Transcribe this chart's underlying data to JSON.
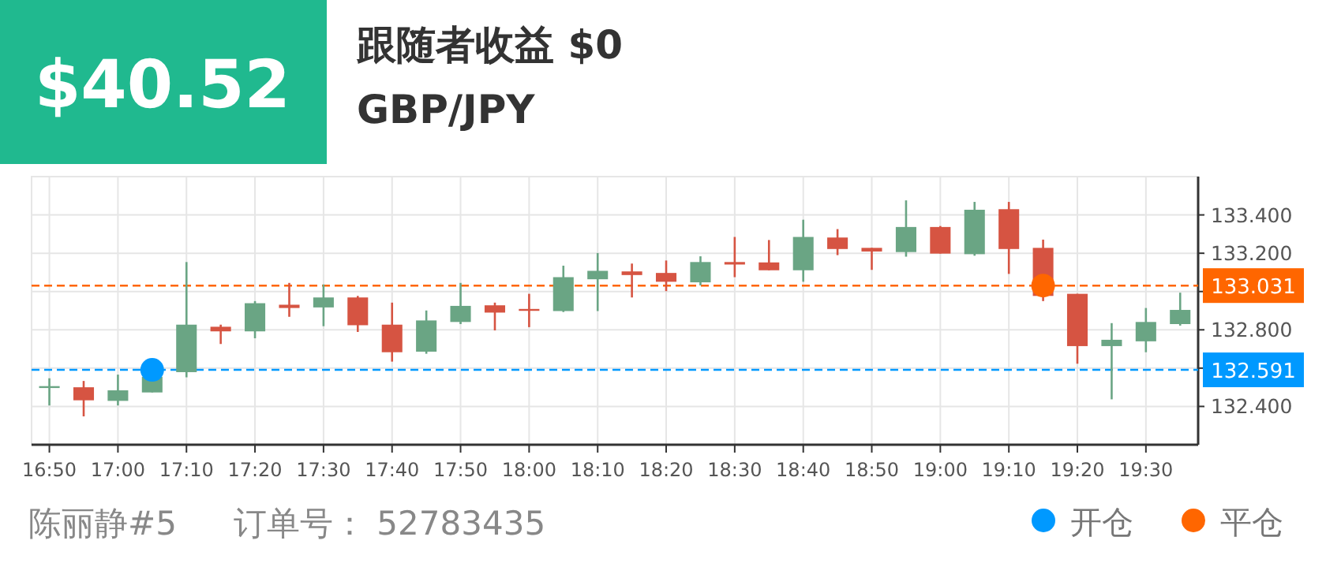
{
  "chart_data": {
    "type": "candlestick",
    "title": "GBP/JPY",
    "subtitle": "跟随者收益 $0",
    "annotations": [
      "$40.52",
      "陈丽静#5",
      "订单号： 52783435"
    ],
    "x": [
      16.8333,
      16.9167,
      17.0,
      17.0833,
      17.1667,
      17.25,
      17.3333,
      17.4167,
      17.5,
      17.5833,
      17.6667,
      17.75,
      17.8333,
      17.9167,
      18.0,
      18.0833,
      18.1667,
      18.25,
      18.3333,
      18.4167,
      18.5,
      18.5833,
      18.6667,
      18.75,
      18.8333,
      18.9167,
      19.0,
      19.0833,
      19.1667,
      19.25,
      19.3333,
      19.4167,
      19.5,
      19.5833
    ],
    "ohlc": [
      [
        132.503,
        132.547,
        132.405,
        132.506
      ],
      [
        132.5,
        132.533,
        132.348,
        132.432
      ],
      [
        132.429,
        132.566,
        132.405,
        132.484
      ],
      [
        132.473,
        132.555,
        132.473,
        132.555
      ],
      [
        132.579,
        133.154,
        132.552,
        132.827
      ],
      [
        132.816,
        132.827,
        132.726,
        132.792
      ],
      [
        132.792,
        132.95,
        132.756,
        132.939
      ],
      [
        132.931,
        133.045,
        132.868,
        132.914
      ],
      [
        132.917,
        133.037,
        132.819,
        132.969
      ],
      [
        132.969,
        132.977,
        132.789,
        132.824
      ],
      [
        132.827,
        132.942,
        132.634,
        132.683
      ],
      [
        132.686,
        132.901,
        132.675,
        132.849
      ],
      [
        132.841,
        133.045,
        132.83,
        132.925
      ],
      [
        132.928,
        132.942,
        132.797,
        132.89
      ],
      [
        132.909,
        132.988,
        132.814,
        132.901
      ],
      [
        132.898,
        133.135,
        132.893,
        133.075
      ],
      [
        133.064,
        133.201,
        132.898,
        133.108
      ],
      [
        133.105,
        133.146,
        132.969,
        133.086
      ],
      [
        133.097,
        133.162,
        133.002,
        133.051
      ],
      [
        133.048,
        133.184,
        133.032,
        133.154
      ],
      [
        133.154,
        133.285,
        133.075,
        133.141
      ],
      [
        133.152,
        133.269,
        133.111,
        133.111
      ],
      [
        133.111,
        133.375,
        133.051,
        133.285
      ],
      [
        133.282,
        133.326,
        133.19,
        133.222
      ],
      [
        133.228,
        133.228,
        133.113,
        133.209
      ],
      [
        133.206,
        133.476,
        133.182,
        133.337
      ],
      [
        133.337,
        133.342,
        133.198,
        133.198
      ],
      [
        133.195,
        133.468,
        133.187,
        133.427
      ],
      [
        133.43,
        133.468,
        133.092,
        133.222
      ],
      [
        133.228,
        133.271,
        132.95,
        132.977
      ],
      [
        132.988,
        132.988,
        132.623,
        132.715
      ],
      [
        132.715,
        132.835,
        132.437,
        132.748
      ],
      [
        132.74,
        132.914,
        132.683,
        132.841
      ],
      [
        132.83,
        132.994,
        132.822,
        132.904
      ]
    ],
    "colors": [
      "#6aa584",
      "#d65442",
      "#6aa584",
      "#6aa584",
      "#6aa584",
      "#d65442",
      "#6aa584",
      "#d65442",
      "#6aa584",
      "#d65442",
      "#d65442",
      "#6aa584",
      "#6aa584",
      "#d65442",
      "#d65442",
      "#6aa584",
      "#6aa584",
      "#d65442",
      "#d65442",
      "#6aa584",
      "#d65442",
      "#d65442",
      "#6aa584",
      "#d65442",
      "#d65442",
      "#6aa584",
      "#d65442",
      "#6aa584",
      "#d65442",
      "#d65442",
      "#d65442",
      "#6aa584",
      "#6aa584",
      "#6aa584"
    ],
    "series": [
      {
        "name": "开仓",
        "type": "scatter",
        "color": "#0099ff",
        "marker": "circle",
        "x": [
          17.0833
        ],
        "values": [
          132.591
        ]
      },
      {
        "name": "平仓",
        "type": "scatter",
        "color": "#ff6600",
        "marker": "circle",
        "x": [
          19.25
        ],
        "values": [
          133.031
        ]
      }
    ],
    "ref_lines": [
      {
        "axis": "y",
        "value": 133.031,
        "label": "133.031",
        "color": "#ff6600",
        "line_style": "dashed"
      },
      {
        "axis": "y",
        "value": 132.591,
        "label": "132.591",
        "color": "#0099ff",
        "line_style": "dashed"
      }
    ],
    "xlim": [
      16.79,
      19.627
    ],
    "ylim": [
      132.2,
      133.6
    ],
    "xticks": [
      {
        "value": 16.8333,
        "label": "16:50"
      },
      {
        "value": 17.0,
        "label": "17:00"
      },
      {
        "value": 17.1667,
        "label": "17:10"
      },
      {
        "value": 17.3333,
        "label": "17:20"
      },
      {
        "value": 17.5,
        "label": "17:30"
      },
      {
        "value": 17.6667,
        "label": "17:40"
      },
      {
        "value": 17.8333,
        "label": "17:50"
      },
      {
        "value": 18.0,
        "label": "18:00"
      },
      {
        "value": 18.1667,
        "label": "18:10"
      },
      {
        "value": 18.3333,
        "label": "18:20"
      },
      {
        "value": 18.5,
        "label": "18:30"
      },
      {
        "value": 18.6667,
        "label": "18:40"
      },
      {
        "value": 18.8333,
        "label": "18:50"
      },
      {
        "value": 19.0,
        "label": "19:00"
      },
      {
        "value": 19.1667,
        "label": "19:10"
      },
      {
        "value": 19.3333,
        "label": "19:20"
      },
      {
        "value": 19.5,
        "label": "19:30"
      }
    ],
    "yticks": [
      {
        "value": 132.4,
        "label": "132.400"
      },
      {
        "value": 132.6,
        "label": null
      },
      {
        "value": 132.8,
        "label": "132.800"
      },
      {
        "value": 133.0,
        "label": null
      },
      {
        "value": 133.2,
        "label": "133.200"
      },
      {
        "value": 133.4,
        "label": "133.400"
      }
    ],
    "grid": true,
    "legend": "bottom right"
  }
}
